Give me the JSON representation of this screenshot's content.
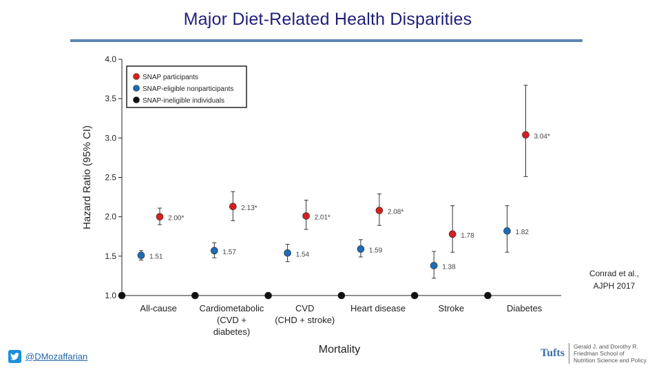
{
  "slide": {
    "title": "Major Diet-Related Health Disparities",
    "citation_line1": "Conrad et al.,",
    "citation_line2": "AJPH 2017",
    "twitter_handle": "@DMozaffarian",
    "logo": {
      "wordmark": "Tufts",
      "school_lines": [
        "Gerald J. and Dorothy R.",
        "Friedman School of",
        "Nutrition Science and Policy"
      ]
    }
  },
  "chart_data": {
    "type": "scatter",
    "title": "",
    "xlabel": "Mortality",
    "ylabel": "Hazard Ratio (95% CI)",
    "ylim": [
      1.0,
      4.0
    ],
    "yticks": [
      "1.0",
      "1.5",
      "2.0",
      "2.5",
      "3.0",
      "3.5",
      "4.0"
    ],
    "categories": [
      [
        "All-cause"
      ],
      [
        "Cardiometabolic",
        "(CVD +",
        "diabetes)"
      ],
      [
        "CVD",
        "(CHD + stroke)"
      ],
      [
        "Heart disease"
      ],
      [
        "Stroke"
      ],
      [
        "Diabetes"
      ]
    ],
    "series": [
      {
        "name": "SNAP participants",
        "color": "#d61f1f",
        "values": [
          2.0,
          2.13,
          2.01,
          2.08,
          1.78,
          3.04
        ],
        "ci_low": [
          1.9,
          1.95,
          1.84,
          1.89,
          1.55,
          2.51
        ],
        "ci_high": [
          2.11,
          2.32,
          2.21,
          2.29,
          2.14,
          3.67
        ],
        "labels": [
          "2.00*",
          "2.13*",
          "2.01*",
          "2.08*",
          "1.78",
          "3.04*"
        ]
      },
      {
        "name": "SNAP-eligible nonparticipants",
        "color": "#1f6bb5",
        "values": [
          1.51,
          1.57,
          1.54,
          1.59,
          1.38,
          1.82
        ],
        "ci_low": [
          1.45,
          1.48,
          1.43,
          1.49,
          1.22,
          1.55
        ],
        "ci_high": [
          1.57,
          1.67,
          1.65,
          1.71,
          1.56,
          2.14
        ],
        "labels": [
          "1.51",
          "1.57",
          "1.54",
          "1.59",
          "1.38",
          "1.82"
        ]
      },
      {
        "name": "SNAP-ineligible individuals",
        "color": "#111111",
        "values": [
          1.0,
          1.0,
          1.0,
          1.0,
          1.0,
          1.0
        ],
        "labels": []
      }
    ],
    "legend_position": "top-left"
  }
}
